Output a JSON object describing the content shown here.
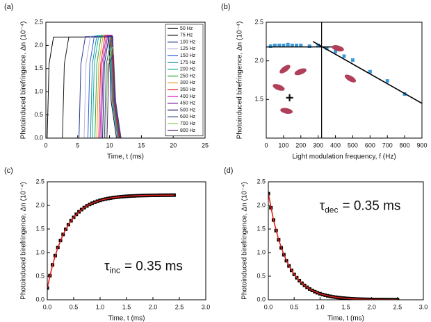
{
  "chart_data": [
    {
      "type": "line",
      "panel_label": "(a)",
      "x_label": "Time, t (ms)",
      "y_label": "Photoinduced birefringence, Δn (10⁻⁴)",
      "xlim": [
        0,
        25
      ],
      "xticks": [
        0,
        5,
        10,
        15,
        20,
        25
      ],
      "ylim": [
        0,
        2.5
      ],
      "yticks": [
        {
          "value": 0,
          "label": "0.0"
        },
        0.5,
        {
          "value": 1,
          "label": "1.0"
        },
        1.5,
        {
          "value": 2,
          "label": "2.0"
        },
        2.5
      ],
      "legend": "right",
      "series": [
        {
          "name": "50 Hz",
          "color": "#000000",
          "x": [
            0.2,
            0.5,
            1.2,
            9.9,
            10.25,
            11.1
          ],
          "values": [
            0,
            1.6,
            2.18,
            2.18,
            0.8,
            0
          ]
        },
        {
          "name": "75 Hz",
          "color": "#1a1a1a",
          "x": [
            2.6,
            2.9,
            3.6,
            9.9,
            10.25,
            11.1
          ],
          "values": [
            0,
            1.6,
            2.18,
            2.18,
            0.8,
            0
          ]
        },
        {
          "name": "100 Hz",
          "color": "#2b3a8f",
          "x": [
            5.2,
            5.5,
            6.2,
            10.0,
            10.35,
            11.2
          ],
          "values": [
            0,
            1.6,
            2.19,
            2.19,
            0.8,
            0
          ]
        },
        {
          "name": "125 Hz",
          "color": "#b8b4e0",
          "x": [
            6.0,
            6.3,
            7.0,
            10.0,
            10.35,
            11.2
          ],
          "values": [
            0,
            1.6,
            2.2,
            2.2,
            0.8,
            0
          ]
        },
        {
          "name": "150 Hz",
          "color": "#2f5fd6",
          "x": [
            6.6,
            6.9,
            7.6,
            10.1,
            10.45,
            11.3
          ],
          "values": [
            0,
            1.6,
            2.2,
            2.2,
            0.8,
            0
          ]
        },
        {
          "name": "175 Hz",
          "color": "#1a8fa8",
          "x": [
            7.0,
            7.3,
            8.0,
            10.1,
            10.45,
            11.3
          ],
          "values": [
            0,
            1.6,
            2.21,
            2.21,
            0.8,
            0
          ]
        },
        {
          "name": "200 Hz",
          "color": "#18b0a0",
          "x": [
            7.3,
            7.6,
            8.3,
            10.2,
            10.55,
            11.4
          ],
          "values": [
            0,
            1.6,
            2.21,
            2.21,
            0.8,
            0
          ]
        },
        {
          "name": "250 Hz",
          "color": "#2ea83a",
          "x": [
            7.7,
            8.0,
            8.7,
            10.2,
            10.55,
            11.4
          ],
          "values": [
            0,
            1.6,
            2.22,
            2.22,
            0.8,
            0
          ]
        },
        {
          "name": "300 Hz",
          "color": "#f0a020",
          "x": [
            8.0,
            8.3,
            9.0,
            10.3,
            10.65,
            11.5
          ],
          "values": [
            0,
            1.6,
            2.22,
            2.22,
            0.8,
            0
          ]
        },
        {
          "name": "350 Hz",
          "color": "#e02020",
          "x": [
            8.3,
            8.6,
            9.3,
            10.3,
            10.65,
            11.5
          ],
          "values": [
            0,
            1.6,
            2.22,
            2.22,
            0.8,
            0
          ]
        },
        {
          "name": "400 Hz",
          "color": "#e020c0",
          "x": [
            8.5,
            8.8,
            9.5,
            10.4,
            10.75,
            11.6
          ],
          "values": [
            0,
            1.6,
            2.22,
            2.22,
            0.8,
            0
          ]
        },
        {
          "name": "450 Hz",
          "color": "#7a2a9a",
          "x": [
            8.7,
            9.0,
            9.7,
            10.4,
            10.75,
            11.6
          ],
          "values": [
            0,
            1.6,
            2.21,
            2.21,
            0.8,
            0
          ]
        },
        {
          "name": "500 Hz",
          "color": "#1a1a70",
          "x": [
            8.9,
            9.2,
            9.9,
            10.5,
            10.85,
            11.7
          ],
          "values": [
            0,
            1.6,
            2.19,
            2.19,
            0.8,
            0
          ]
        },
        {
          "name": "600 Hz",
          "color": "#3a4a80",
          "x": [
            9.2,
            9.5,
            10.2,
            10.5,
            10.85,
            11.7
          ],
          "values": [
            0,
            1.6,
            2.1,
            2.1,
            0.8,
            0
          ]
        },
        {
          "name": "700 Hz",
          "color": "#8ad060",
          "x": [
            9.4,
            9.7,
            10.4,
            10.6,
            10.95,
            11.8
          ],
          "values": [
            0,
            1.6,
            1.95,
            1.95,
            0.8,
            0
          ]
        },
        {
          "name": "800 Hz",
          "color": "#5a2a70",
          "x": [
            9.6,
            9.9,
            10.6,
            10.6,
            10.95,
            11.8
          ],
          "values": [
            0,
            1.6,
            1.8,
            1.8,
            0.8,
            0
          ]
        }
      ]
    },
    {
      "type": "scatter",
      "panel_label": "(b)",
      "x_label": "Light modulation frequency, f (Hz)",
      "y_label": "Photoinduced birefringence, Δn (10⁻⁴)",
      "xlim": [
        0,
        900
      ],
      "xticks": [
        0,
        100,
        200,
        300,
        400,
        500,
        600,
        700,
        800,
        900
      ],
      "ylim": [
        1.0,
        2.5
      ],
      "yticks": [
        1.5,
        {
          "value": 2,
          "label": "2.0"
        },
        2.5
      ],
      "vline": 320,
      "annotation_text": "+",
      "series": [
        {
          "kind": "square",
          "color": "#3a9ad9",
          "x": [
            25,
            50,
            75,
            100,
            125,
            150,
            175,
            200,
            250,
            300,
            350,
            400,
            450,
            500,
            600,
            700,
            800
          ],
          "values": [
            2.19,
            2.2,
            2.2,
            2.2,
            2.21,
            2.2,
            2.2,
            2.2,
            2.19,
            2.2,
            2.16,
            2.12,
            2.06,
            2.01,
            1.86,
            1.74,
            1.57
          ]
        },
        {
          "kind": "line",
          "color": "#000000",
          "x": [
            0,
            380
          ],
          "values": [
            2.18,
            2.18
          ]
        },
        {
          "kind": "line",
          "color": "#000000",
          "x": [
            270,
            900
          ],
          "values": [
            2.25,
            1.45
          ]
        }
      ]
    },
    {
      "type": "scatter",
      "panel_label": "(c)",
      "x_label": "Time, t (ms)",
      "y_label": "Photoinduced birefringence, Δn (10⁻⁴)",
      "xlim": [
        0,
        3
      ],
      "xticks": [
        {
          "value": 0,
          "label": "0.0"
        },
        0.5,
        {
          "value": 1,
          "label": "1.0"
        },
        1.5,
        {
          "value": 2,
          "label": "2.0"
        },
        2.5,
        {
          "value": 3,
          "label": "3.0"
        }
      ],
      "ylim": [
        0,
        2.5
      ],
      "yticks": [
        {
          "value": 0,
          "label": "0.0"
        },
        0.5,
        {
          "value": 1,
          "label": "1.0"
        },
        1.5,
        {
          "value": 2,
          "label": "2.0"
        },
        2.5
      ],
      "annotation": {
        "symbol": "τ",
        "subscript": "inc",
        "text": "= 0.35 ms"
      },
      "series": [
        {
          "kind": "square",
          "color": "#000000",
          "x": [
            0,
            0.05,
            0.1,
            0.15,
            0.2,
            0.25,
            0.3,
            0.35,
            0.4,
            0.45,
            0.5,
            0.55,
            0.6,
            0.65,
            0.7,
            0.75,
            0.8,
            0.85,
            0.9,
            0.95,
            1.0,
            1.05,
            1.1,
            1.15,
            1.2,
            1.25,
            1.3,
            1.35,
            1.4,
            1.45,
            1.5,
            1.55,
            1.6,
            1.65,
            1.7,
            1.75,
            1.8,
            1.85,
            1.9,
            1.95,
            2.0,
            2.05,
            2.1,
            2.15,
            2.2,
            2.25,
            2.3,
            2.35,
            2.4
          ],
          "values": [
            0.25,
            0.512,
            0.74,
            0.937,
            1.108,
            1.256,
            1.384,
            1.495,
            1.592,
            1.675,
            1.748,
            1.811,
            1.865,
            1.912,
            1.953,
            1.989,
            2.02,
            2.046,
            2.069,
            2.089,
            2.107,
            2.122,
            2.135,
            2.146,
            2.156,
            2.165,
            2.172,
            2.178,
            2.184,
            2.189,
            2.193,
            2.197,
            2.2,
            2.202,
            2.205,
            2.207,
            2.209,
            2.21,
            2.211,
            2.213,
            2.214,
            2.214,
            2.215,
            2.216,
            2.216,
            2.217,
            2.217,
            2.218,
            2.218
          ]
        },
        {
          "kind": "line",
          "color": "#e0211b",
          "x": [
            0,
            0.1,
            0.2,
            0.3,
            0.4,
            0.5,
            0.6,
            0.7,
            0.8,
            0.9,
            1.0,
            1.1,
            1.2,
            1.3,
            1.4,
            1.5,
            1.6,
            1.7,
            1.8,
            1.9,
            2.0,
            2.1,
            2.2,
            2.3,
            2.4
          ],
          "values": [
            0.25,
            0.74,
            1.108,
            1.384,
            1.592,
            1.748,
            1.865,
            1.953,
            2.02,
            2.069,
            2.107,
            2.135,
            2.156,
            2.172,
            2.184,
            2.193,
            2.2,
            2.205,
            2.209,
            2.211,
            2.214,
            2.215,
            2.216,
            2.217,
            2.218
          ]
        }
      ]
    },
    {
      "type": "scatter",
      "panel_label": "(d)",
      "x_label": "Time, t (ms)",
      "y_label": "Photoinduced birefringence, Δn (10⁻⁴)",
      "xlim": [
        0,
        3
      ],
      "xticks": [
        {
          "value": 0,
          "label": "0.0"
        },
        0.5,
        {
          "value": 1,
          "label": "1.0"
        },
        1.5,
        {
          "value": 2,
          "label": "2.0"
        },
        2.5,
        {
          "value": 3,
          "label": "3.0"
        }
      ],
      "ylim": [
        0,
        2.5
      ],
      "yticks": [
        {
          "value": 0,
          "label": "0.0"
        },
        0.5,
        {
          "value": 1,
          "label": "1.0"
        },
        1.5,
        {
          "value": 2,
          "label": "2.0"
        },
        2.5
      ],
      "annotation": {
        "symbol": "τ",
        "subscript": "dec",
        "text": "= 0.35 ms"
      },
      "series": [
        {
          "kind": "square",
          "color": "#000000",
          "x": [
            0,
            0.05,
            0.1,
            0.15,
            0.2,
            0.25,
            0.3,
            0.35,
            0.4,
            0.45,
            0.5,
            0.55,
            0.6,
            0.65,
            0.7,
            0.75,
            0.8,
            0.85,
            0.9,
            0.95,
            1.0,
            1.05,
            1.1,
            1.15,
            1.2,
            1.25,
            1.3,
            1.35,
            1.4,
            1.45,
            1.5,
            1.55,
            1.6,
            1.65,
            1.7,
            1.75,
            1.8,
            1.85,
            1.9,
            1.95,
            2.0,
            2.05,
            2.1,
            2.15,
            2.2,
            2.25,
            2.3,
            2.35,
            2.4,
            2.45,
            2.5
          ],
          "values": [
            2.25,
            1.95,
            1.691,
            1.466,
            1.271,
            1.101,
            0.955,
            0.828,
            0.718,
            0.622,
            0.539,
            0.467,
            0.405,
            0.351,
            0.305,
            0.264,
            0.229,
            0.198,
            0.172,
            0.149,
            0.129,
            0.112,
            0.097,
            0.084,
            0.073,
            0.063,
            0.055,
            0.048,
            0.041,
            0.036,
            0.031,
            0.027,
            0.023,
            0.02,
            0.017,
            0.015,
            0.013,
            0.011,
            0.01,
            0.009,
            0.007,
            0.006,
            0.006,
            0.005,
            0.004,
            0.004,
            0.003,
            0.003,
            0.002,
            0.002,
            0.002
          ]
        },
        {
          "kind": "line",
          "color": "#e0211b",
          "x": [
            0,
            0.1,
            0.2,
            0.3,
            0.4,
            0.5,
            0.6,
            0.7,
            0.8,
            0.9,
            1.0,
            1.1,
            1.2,
            1.3,
            1.4,
            1.5,
            1.6,
            1.7,
            1.8,
            1.9,
            2.0,
            2.1,
            2.2,
            2.3,
            2.4,
            2.5
          ],
          "values": [
            2.25,
            1.691,
            1.271,
            0.955,
            0.718,
            0.539,
            0.405,
            0.305,
            0.229,
            0.172,
            0.129,
            0.097,
            0.073,
            0.055,
            0.041,
            0.031,
            0.023,
            0.017,
            0.013,
            0.01,
            0.007,
            0.006,
            0.004,
            0.003,
            0.002,
            0.002
          ]
        }
      ]
    }
  ]
}
